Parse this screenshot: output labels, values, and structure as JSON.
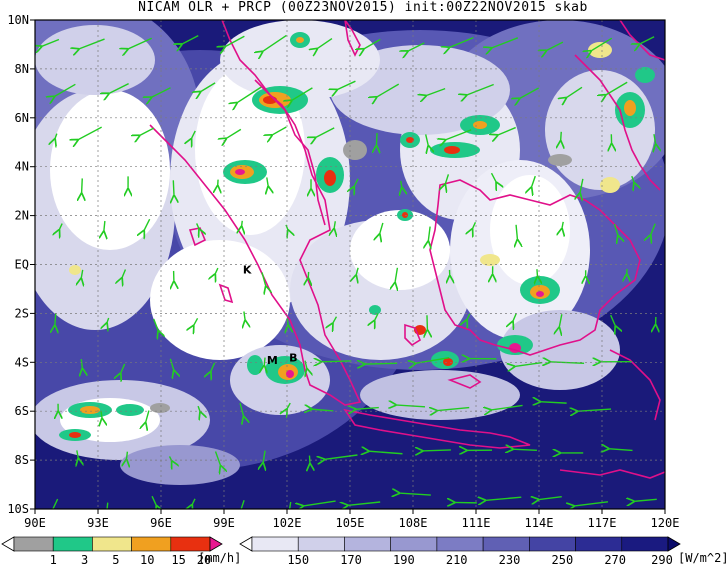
{
  "title": "NICAM OLR + PRCP (00Z23NOV2015) init:00Z22NOV2015 skab",
  "map": {
    "lon_range": [
      90,
      120
    ],
    "lat_range": [
      -10,
      10
    ],
    "lon_ticks": [
      "90E",
      "93E",
      "96E",
      "99E",
      "102E",
      "105E",
      "108E",
      "111E",
      "114E",
      "117E",
      "120E"
    ],
    "lat_ticks": [
      "10N",
      "8N",
      "6N",
      "4N",
      "2N",
      "EQ",
      "2S",
      "4S",
      "6S",
      "8S",
      "10S"
    ],
    "grid": true,
    "background_color": "#1a1a7a",
    "coastline_color": "#e0108a",
    "wind_vector_color": "#22cc22",
    "sites": [
      {
        "label": "K",
        "lon": 100.1,
        "lat": -0.2
      },
      {
        "label": "M",
        "lon": 101.3,
        "lat": -3.9
      },
      {
        "label": "B",
        "lon": 102.3,
        "lat": -3.8
      }
    ]
  },
  "legend_precip": {
    "labels": [
      "1",
      "3",
      "5",
      "10",
      "15",
      "20"
    ],
    "unit": "[mm/h]",
    "colors": [
      "#ffffff",
      "#a0a0a0",
      "#20c888",
      "#f0e68c",
      "#f0a020",
      "#e83010",
      "#e81890"
    ]
  },
  "legend_olr": {
    "labels": [
      "150",
      "170",
      "190",
      "210",
      "230",
      "250",
      "270",
      "290"
    ],
    "unit": "[W/m^2]",
    "colors": [
      "#ffffff",
      "#e8e8f4",
      "#d0d0ea",
      "#b4b4de",
      "#9898d0",
      "#7c7cc4",
      "#6060b4",
      "#4444a4",
      "#2c2c94",
      "#1a1a80",
      "#0c0c6a"
    ]
  }
}
